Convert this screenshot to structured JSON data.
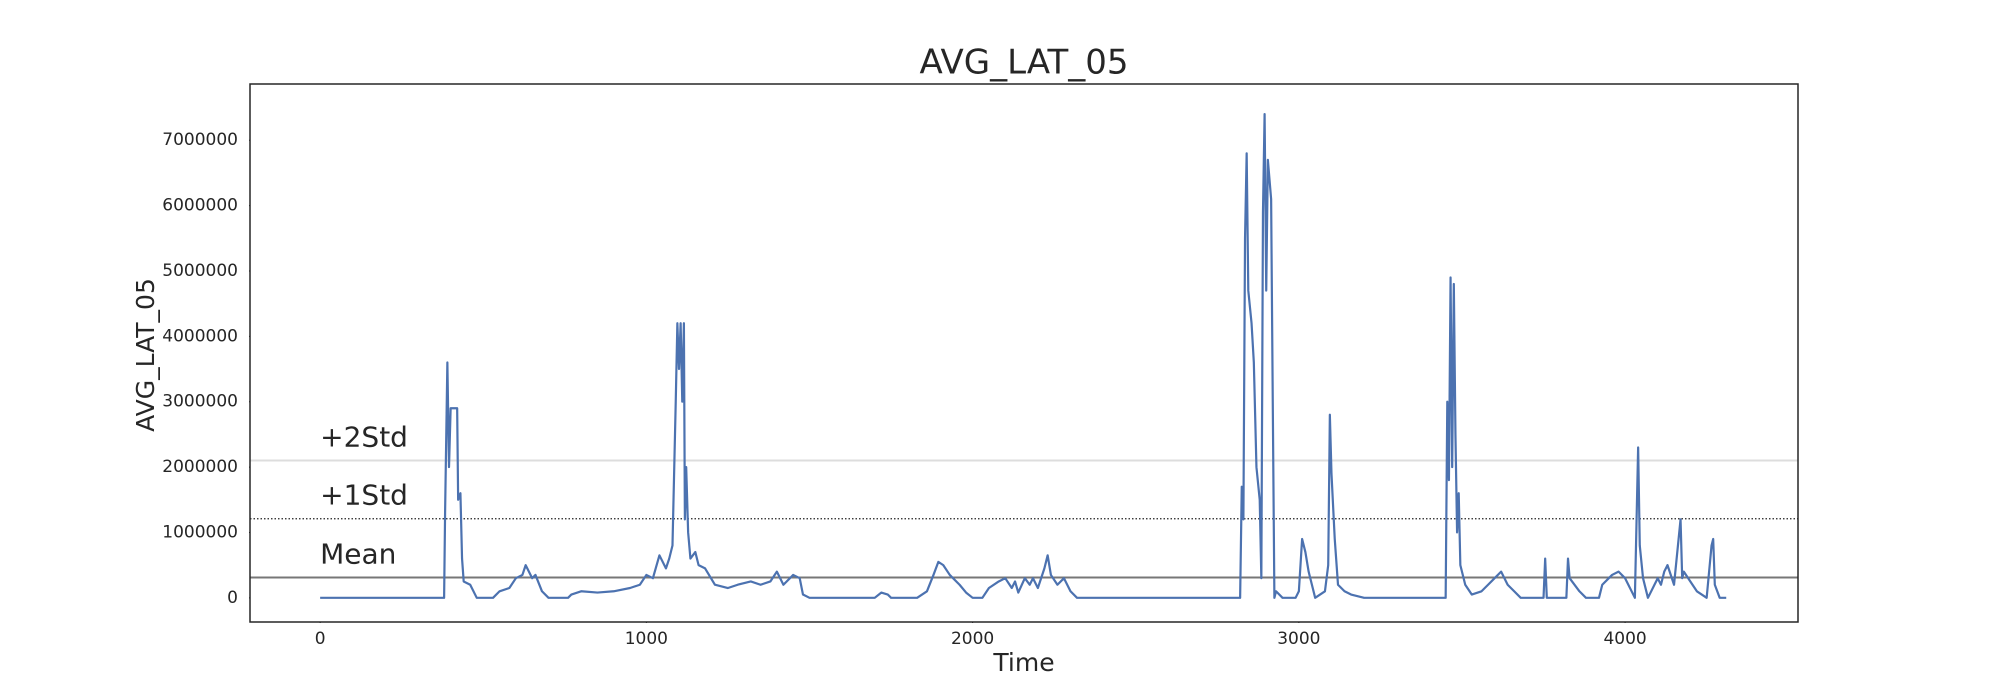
{
  "chart_data": {
    "type": "line",
    "title": "AVG_LAT_05",
    "xlabel": "Time",
    "ylabel": "AVG_LAT_05",
    "color": "#4c72b0",
    "xlim": [
      -215,
      4530
    ],
    "xticks": [
      0,
      1000,
      2000,
      3000,
      4000
    ],
    "ylim": [
      -370000,
      7860000
    ],
    "yticks": [
      0,
      1000000,
      2000000,
      3000000,
      4000000,
      5000000,
      6000000,
      7000000
    ],
    "reference_lines": [
      {
        "label": "Mean",
        "value": 310000,
        "color": "#777777",
        "style": "solid"
      },
      {
        "label": "+1Std",
        "value": 1210000,
        "color": "#222222",
        "style": "dotted"
      },
      {
        "label": "+2Std",
        "value": 2100000,
        "color": "#dddddd",
        "style": "solid"
      }
    ],
    "x": [
      0,
      380,
      383,
      390,
      395,
      400,
      420,
      423,
      430,
      435,
      440,
      460,
      480,
      530,
      550,
      580,
      600,
      620,
      630,
      650,
      660,
      680,
      700,
      760,
      770,
      800,
      850,
      900,
      950,
      980,
      1000,
      1020,
      1040,
      1060,
      1070,
      1080,
      1090,
      1095,
      1100,
      1105,
      1110,
      1115,
      1118,
      1122,
      1128,
      1135,
      1150,
      1160,
      1180,
      1210,
      1250,
      1280,
      1320,
      1350,
      1380,
      1400,
      1420,
      1450,
      1470,
      1480,
      1500,
      1700,
      1720,
      1740,
      1750,
      1830,
      1860,
      1880,
      1895,
      1910,
      1930,
      1960,
      1980,
      2000,
      2030,
      2050,
      2080,
      2100,
      2120,
      2130,
      2140,
      2160,
      2175,
      2185,
      2200,
      2220,
      2230,
      2240,
      2260,
      2280,
      2300,
      2320,
      2820,
      2825,
      2830,
      2835,
      2840,
      2845,
      2855,
      2862,
      2870,
      2880,
      2885,
      2890,
      2895,
      2900,
      2905,
      2915,
      2920,
      2925,
      2930,
      2950,
      2990,
      3000,
      3010,
      3020,
      3030,
      3040,
      3050,
      3080,
      3090,
      3095,
      3100,
      3110,
      3120,
      3140,
      3160,
      3200,
      3450,
      3455,
      3460,
      3465,
      3470,
      3475,
      3480,
      3485,
      3490,
      3495,
      3510,
      3530,
      3560,
      3580,
      3600,
      3620,
      3640,
      3660,
      3680,
      3750,
      3755,
      3760,
      3820,
      3825,
      3830,
      3860,
      3880,
      3920,
      3930,
      3960,
      3980,
      4000,
      4030,
      4040,
      4045,
      4055,
      4070,
      4090,
      4100,
      4110,
      4120,
      4130,
      4150,
      4170,
      4175,
      4180,
      4200,
      4220,
      4250,
      4265,
      4270,
      4275,
      4290,
      4310
    ],
    "values": [
      0,
      0,
      1300000,
      3600000,
      2000000,
      2900000,
      2900000,
      1500000,
      1600000,
      600000,
      250000,
      200000,
      0,
      0,
      100000,
      150000,
      300000,
      350000,
      500000,
      300000,
      350000,
      100000,
      0,
      0,
      50000,
      100000,
      80000,
      100000,
      150000,
      200000,
      350000,
      300000,
      650000,
      450000,
      600000,
      800000,
      3000000,
      4200000,
      3500000,
      4200000,
      3000000,
      4200000,
      1200000,
      2000000,
      1000000,
      600000,
      700000,
      500000,
      450000,
      200000,
      150000,
      200000,
      250000,
      200000,
      250000,
      400000,
      200000,
      350000,
      300000,
      50000,
      0,
      0,
      80000,
      50000,
      0,
      0,
      100000,
      350000,
      550000,
      500000,
      350000,
      200000,
      80000,
      0,
      0,
      150000,
      250000,
      300000,
      150000,
      250000,
      80000,
      300000,
      200000,
      300000,
      150000,
      450000,
      650000,
      350000,
      200000,
      300000,
      100000,
      0,
      0,
      1700000,
      1200000,
      5500000,
      6800000,
      4700000,
      4200000,
      3600000,
      2000000,
      1500000,
      300000,
      5900000,
      7400000,
      4700000,
      6700000,
      6100000,
      3000000,
      0,
      100000,
      0,
      0,
      100000,
      900000,
      700000,
      400000,
      200000,
      0,
      100000,
      500000,
      2800000,
      1900000,
      900000,
      200000,
      100000,
      50000,
      0,
      0,
      3000000,
      1800000,
      4900000,
      2000000,
      4800000,
      2500000,
      1000000,
      1600000,
      500000,
      200000,
      50000,
      100000,
      200000,
      300000,
      400000,
      200000,
      100000,
      0,
      0,
      600000,
      0,
      0,
      600000,
      300000,
      100000,
      0,
      0,
      200000,
      350000,
      400000,
      300000,
      0,
      2300000,
      800000,
      300000,
      0,
      200000,
      300000,
      200000,
      400000,
      500000,
      200000,
      1200000,
      300000,
      400000,
      250000,
      100000,
      0,
      800000,
      900000,
      200000,
      0,
      0
    ]
  }
}
